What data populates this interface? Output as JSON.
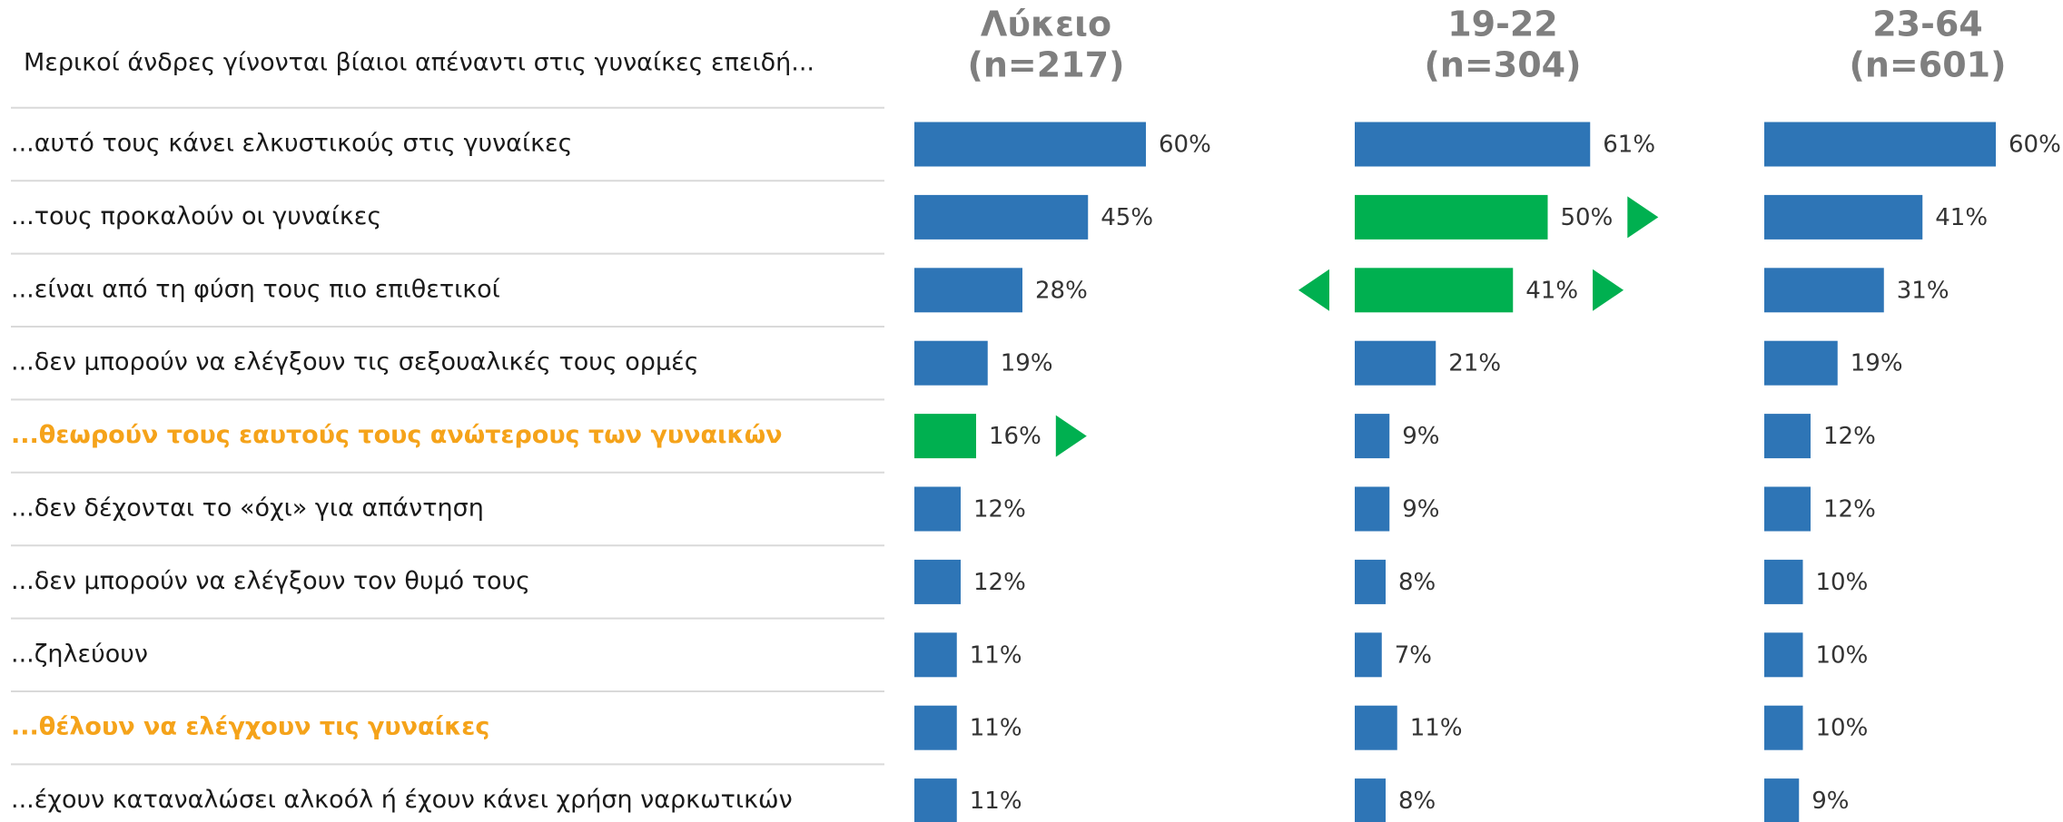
{
  "chart_data": {
    "type": "bar",
    "title": "Μερικοί άνδρες γίνονται βίαιοι απέναντι στις γυναίκες επειδή...",
    "categories": [
      "...αυτό τους κάνει ελκυστικούς στις γυναίκες",
      "...τους προκαλούν οι γυναίκες",
      "...είναι από τη φύση τους πιο επιθετικοί",
      "...δεν μπορούν να ελέγξουν τις σεξουαλικές τους ορμές",
      "...θεωρούν τους εαυτούς τους ανώτερους των γυναικών",
      "...δεν δέχονται το «όχι» για απάντηση",
      "...δεν μπορούν να ελέγξουν τον θυμό τους",
      "...ζηλεύουν",
      "...θέλουν να ελέγχουν τις γυναίκες",
      "...έχουν καταναλώσει αλκοόλ ή έχουν κάνει χρήση ναρκωτικών"
    ],
    "category_colors": [
      "#1a1a1a",
      "#1a1a1a",
      "#1a1a1a",
      "#1a1a1a",
      "#f5a31a",
      "#1a1a1a",
      "#1a1a1a",
      "#1a1a1a",
      "#f5a31a",
      "#1a1a1a"
    ],
    "series": [
      {
        "name": "Λύκειο",
        "sample": "(n=217)",
        "color": "#2e75b6",
        "values": [
          60,
          45,
          28,
          19,
          16,
          12,
          12,
          11,
          11,
          11
        ],
        "value_labels": [
          "60%",
          "45%",
          "28%",
          "19%",
          "16%",
          "12%",
          "12%",
          "11%",
          "11%",
          "11%"
        ],
        "colors": [
          "#2e75b6",
          "#2e75b6",
          "#2e75b6",
          "#2e75b6",
          "#00b050",
          "#2e75b6",
          "#2e75b6",
          "#2e75b6",
          "#2e75b6",
          "#2e75b6"
        ],
        "arrows": [
          null,
          null,
          null,
          null,
          "right",
          null,
          null,
          null,
          null,
          null
        ]
      },
      {
        "name": "19-22",
        "sample": "(n=304)",
        "color": "#2e75b6",
        "values": [
          61,
          50,
          41,
          21,
          9,
          9,
          8,
          7,
          11,
          8
        ],
        "value_labels": [
          "61%",
          "50%",
          "41%",
          "21%",
          "9%",
          "9%",
          "8%",
          "7%",
          "11%",
          "8%"
        ],
        "colors": [
          "#2e75b6",
          "#00b050",
          "#00b050",
          "#2e75b6",
          "#2e75b6",
          "#2e75b6",
          "#2e75b6",
          "#2e75b6",
          "#2e75b6",
          "#2e75b6"
        ],
        "arrows": [
          null,
          "right",
          "both",
          null,
          null,
          null,
          null,
          null,
          null,
          null
        ]
      },
      {
        "name": "23-64",
        "sample": "(n=601)",
        "color": "#2e75b6",
        "values": [
          60,
          41,
          31,
          19,
          12,
          12,
          10,
          10,
          10,
          9
        ],
        "value_labels": [
          "60%",
          "41%",
          "31%",
          "19%",
          "12%",
          "12%",
          "10%",
          "10%",
          "10%",
          "9%"
        ],
        "colors": [
          "#2e75b6",
          "#2e75b6",
          "#2e75b6",
          "#2e75b6",
          "#2e75b6",
          "#2e75b6",
          "#2e75b6",
          "#2e75b6",
          "#2e75b6",
          "#2e75b6"
        ],
        "arrows": [
          null,
          null,
          null,
          null,
          null,
          null,
          null,
          null,
          null,
          null
        ]
      }
    ]
  }
}
